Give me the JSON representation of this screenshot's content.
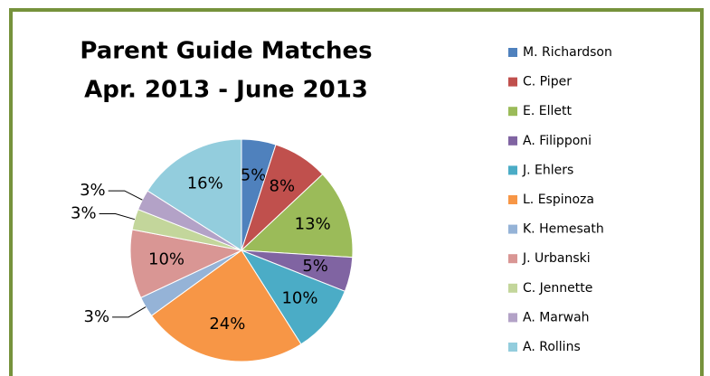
{
  "chart_data": {
    "type": "pie",
    "title": [
      "Parent Guide Matches",
      "Apr. 2013 - June 2013"
    ],
    "categories": [
      "M. Richardson",
      "C. Piper",
      "E. Ellett",
      "A. Filipponi",
      "J. Ehlers",
      "L. Espinoza",
      "K. Hemesath",
      "J. Urbanski",
      "C. Jennette",
      "A. Marwah",
      "A. Rollins"
    ],
    "values": [
      5,
      8,
      13,
      5,
      10,
      24,
      3,
      10,
      3,
      3,
      16
    ],
    "value_labels": [
      "5%",
      "8%",
      "13%",
      "5%",
      "10%",
      "24%",
      "3%",
      "10%",
      "3%",
      "3%",
      "16%"
    ],
    "colors": [
      "#4F81BD",
      "#C0504D",
      "#9BBB59",
      "#8064A2",
      "#4BACC6",
      "#F79646",
      "#95B3D7",
      "#D99694",
      "#C3D69B",
      "#B3A2C7",
      "#93CDDD"
    ],
    "legend": "right"
  }
}
